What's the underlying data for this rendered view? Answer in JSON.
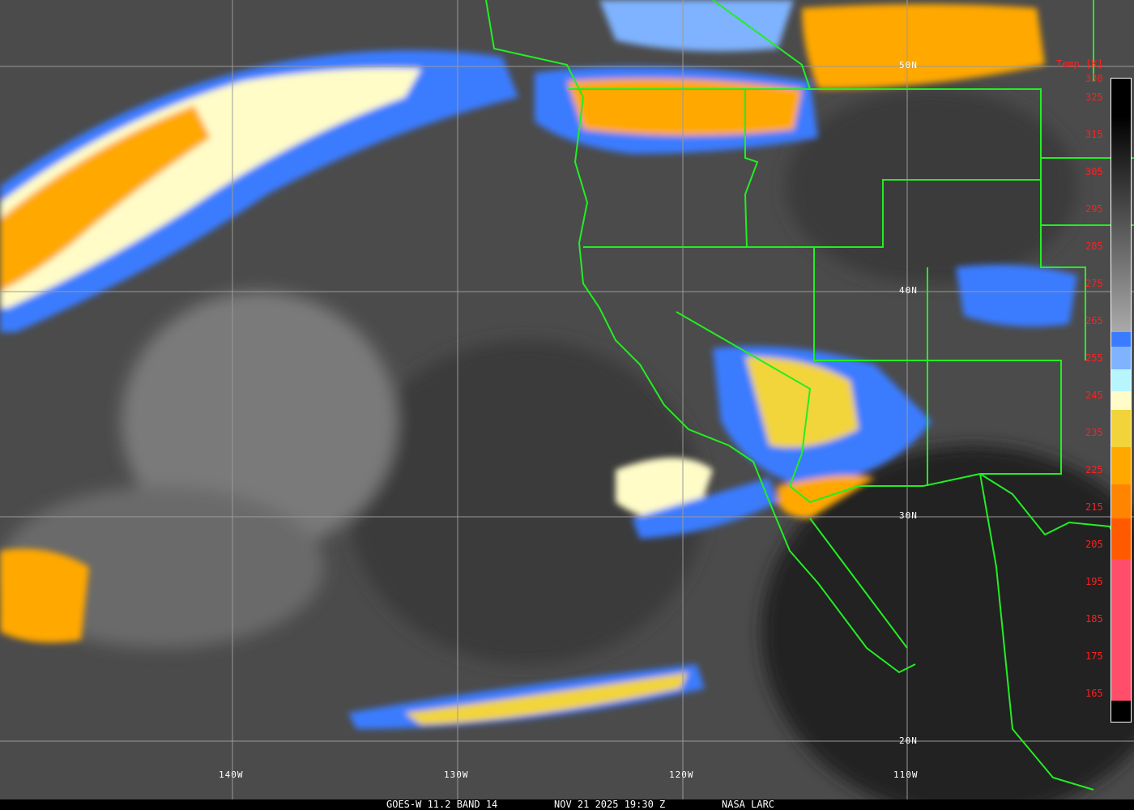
{
  "caption": {
    "satellite": "GOES-W 11.2 BAND 14",
    "datetime": "NOV 21 2025 19:30 Z",
    "credit": "NASA LARC"
  },
  "colorbar": {
    "title": "Temp [K]",
    "ticks": [
      "330",
      "325",
      "315",
      "305",
      "295",
      "285",
      "275",
      "265",
      "255",
      "245",
      "235",
      "225",
      "215",
      "205",
      "195",
      "185",
      "175",
      "165"
    ],
    "colors": {
      "blue": "#3a7bff",
      "light_blue": "#7fb3ff",
      "cyan": "#b8f6ff",
      "cream": "#fffcc8",
      "yellow": "#f2d43a",
      "orange": "#ffa800",
      "dark_orange": "#ff8400",
      "red_orange": "#ff5a00",
      "pink": "#ff4d6a"
    }
  },
  "grid": {
    "longitudes": [
      "140W",
      "130W",
      "120W",
      "110W"
    ],
    "latitudes": [
      "50N",
      "40N",
      "30N",
      "20N"
    ]
  },
  "border_color": "#22ee22"
}
